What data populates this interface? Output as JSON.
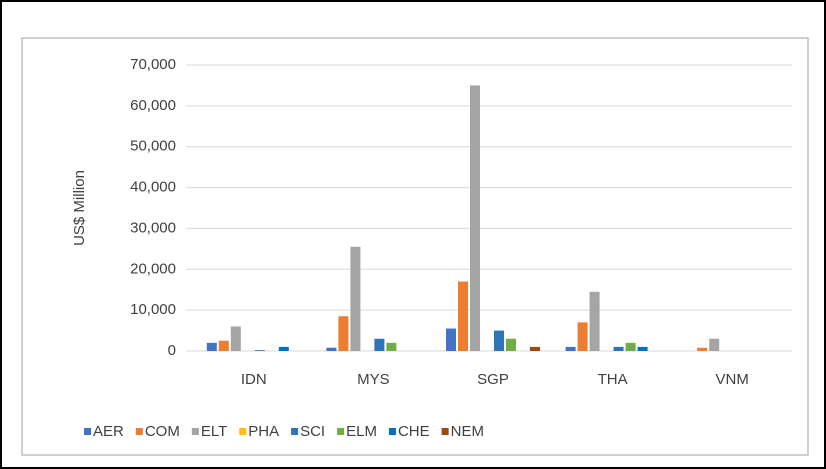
{
  "chart_data": {
    "type": "bar",
    "y_label": "US$ Million",
    "categories": [
      "IDN",
      "MYS",
      "SGP",
      "THA",
      "VNM"
    ],
    "series": [
      {
        "name": "AER",
        "color": "#4472c4",
        "values": [
          2000,
          800,
          5500,
          1000,
          0
        ]
      },
      {
        "name": "COM",
        "color": "#ed7d31",
        "values": [
          2500,
          8500,
          17000,
          7000,
          800
        ]
      },
      {
        "name": "ELT",
        "color": "#a5a5a5",
        "values": [
          6000,
          25500,
          65000,
          14500,
          3000
        ]
      },
      {
        "name": "PHA",
        "color": "#ffc000",
        "values": [
          0,
          0,
          0,
          0,
          0
        ]
      },
      {
        "name": "SCI",
        "color": "#2e75b6",
        "values": [
          200,
          3000,
          5000,
          1000,
          0
        ]
      },
      {
        "name": "ELM",
        "color": "#70ad47",
        "values": [
          0,
          2000,
          3000,
          2000,
          0
        ]
      },
      {
        "name": "CHE",
        "color": "#0070c0",
        "values": [
          1000,
          0,
          0,
          1000,
          0
        ]
      },
      {
        "name": "NEM",
        "color": "#9e480e",
        "values": [
          0,
          0,
          1000,
          0,
          0
        ]
      }
    ],
    "ylim": [
      0,
      70000
    ],
    "yticks": [
      0,
      {
        "value": 10000,
        "label": "10,000"
      },
      {
        "value": 20000,
        "label": "20,000"
      },
      {
        "value": 30000,
        "label": "30,000"
      },
      {
        "value": 40000,
        "label": "40,000"
      },
      {
        "value": 50000,
        "label": "50,000"
      },
      {
        "value": 60000,
        "label": "60,000"
      },
      {
        "value": 70000,
        "label": "70,000"
      }
    ],
    "grid": true,
    "legend": "bottom"
  }
}
